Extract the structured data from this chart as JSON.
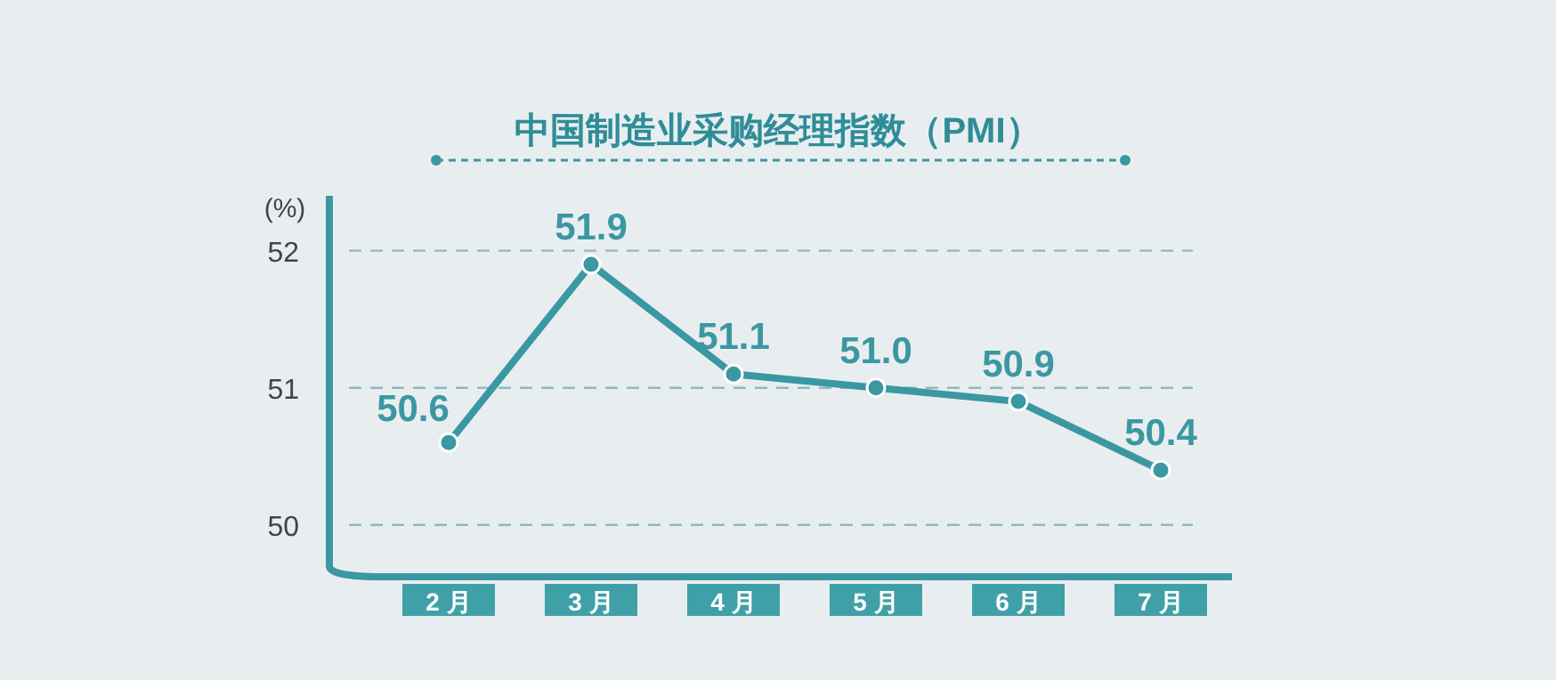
{
  "chart_data": {
    "type": "line",
    "title": "中国制造业采购经理指数（PMI）",
    "ylabel": "(%)",
    "categories": [
      "2 月",
      "3 月",
      "4 月",
      "5 月",
      "6 月",
      "7 月"
    ],
    "series": [
      {
        "color": "#3b98a2",
        "values": [
          50.6,
          51.9,
          51.1,
          51.0,
          50.9,
          50.4
        ],
        "value_labels": [
          "50.6",
          "51.9",
          "51.1",
          "51.0",
          "50.9",
          "50.4"
        ]
      }
    ],
    "ylim": [
      49.7,
      52.4
    ],
    "yticks": [
      50,
      51,
      52
    ],
    "grid": "y",
    "marker": "circle",
    "data_labels": true
  }
}
